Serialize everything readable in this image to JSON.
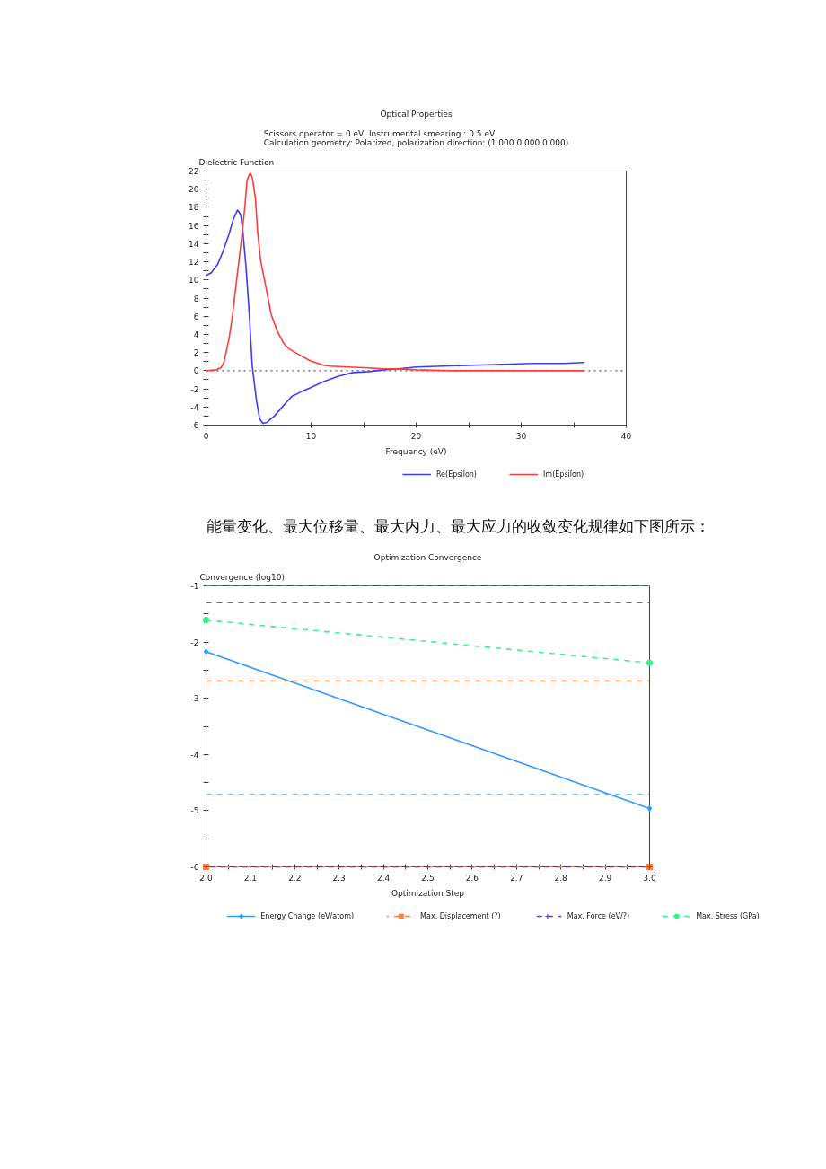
{
  "chart_data": [
    {
      "type": "line",
      "title": "Optical Properties",
      "subtitle": "Scissors operator = 0 eV, Instrumental smearing : 0.5 eV\nCalculation geometry: Polarized, polarization direction: (1.000 0.000 0.000)",
      "xlabel": "Frequency (eV)",
      "ylabel": "Dielectric Function",
      "xlim": [
        0,
        40
      ],
      "ylim": [
        -6,
        22
      ],
      "xticks": [
        0,
        {
          "value": 5,
          "label": null
        },
        10,
        {
          "value": 15,
          "label": null
        },
        20,
        {
          "value": 25,
          "label": null
        },
        30,
        {
          "value": 35,
          "label": null
        },
        40
      ],
      "yticks": [
        -6,
        {
          "value": -5,
          "label": null
        },
        -4,
        {
          "value": -3,
          "label": null
        },
        -2,
        {
          "value": -1,
          "label": null
        },
        0,
        {
          "value": 1,
          "label": null
        },
        2,
        {
          "value": 3,
          "label": null
        },
        4,
        {
          "value": 5,
          "label": null
        },
        6,
        {
          "value": 7,
          "label": null
        },
        8,
        {
          "value": 9,
          "label": null
        },
        10,
        {
          "value": 11,
          "label": null
        },
        12,
        {
          "value": 13,
          "label": null
        },
        14,
        {
          "value": 15,
          "label": null
        },
        16,
        {
          "value": 17,
          "label": null
        },
        18,
        {
          "value": 19,
          "label": null
        },
        20,
        {
          "value": 21,
          "label": null
        },
        22
      ],
      "series": [
        {
          "name": "Re(Epsilon)",
          "color": "#3c3cff",
          "x": [
            0,
            0.5,
            1.1,
            1.6,
            2.2,
            2.6,
            3.0,
            3.3,
            3.5,
            3.8,
            4.1,
            4.4,
            4.8,
            5.1,
            5.4,
            5.8,
            6.5,
            7.4,
            8.2,
            9.1,
            9.9,
            11.2,
            12.6,
            14.0,
            15.5,
            16.9,
            18.3,
            20.0,
            22.6,
            25.4,
            28.3,
            31.1,
            34.0,
            36.0
          ],
          "values": [
            10.5,
            10.8,
            11.7,
            13.1,
            15.1,
            16.7,
            17.7,
            17.2,
            15.4,
            11.5,
            6.5,
            0.5,
            -3.3,
            -5.3,
            -5.8,
            -5.7,
            -5.0,
            -3.8,
            -2.8,
            -2.3,
            -1.9,
            -1.2,
            -0.6,
            -0.2,
            -0.1,
            0.1,
            0.2,
            0.4,
            0.5,
            0.6,
            0.7,
            0.8,
            0.8,
            0.9
          ]
        },
        {
          "name": "Im(Epsilon)",
          "color": "#ff3c3c",
          "x": [
            0,
            1.0,
            1.4,
            1.7,
            1.9,
            2.2,
            2.5,
            2.8,
            3.1,
            3.4,
            3.7,
            3.9,
            4.2,
            4.4,
            4.7,
            4.9,
            5.2,
            5.7,
            6.2,
            6.8,
            7.4,
            7.9,
            8.8,
            9.9,
            11.2,
            11.8,
            13.5,
            15.5,
            16.9,
            18.3,
            20.0,
            23.2,
            27.0,
            36.0
          ],
          "values": [
            0,
            0.1,
            0.3,
            0.9,
            2.0,
            3.6,
            5.9,
            8.9,
            11.8,
            14.8,
            18.1,
            21.0,
            21.8,
            21.3,
            19.0,
            15.4,
            12.1,
            9.2,
            6.2,
            4.3,
            3.0,
            2.4,
            1.8,
            1.1,
            0.6,
            0.5,
            0.4,
            0.3,
            0.2,
            0.2,
            0.1,
            0,
            0,
            0
          ]
        }
      ],
      "ref_lines": [
        {
          "axis": "y",
          "value": 0,
          "color": "#555555",
          "line_style": "dotted"
        }
      ],
      "legend": "bottom",
      "annotations": [
        "能量变化、最大位移量、最大内力、最大应力的收敛变化规律如下图所示："
      ]
    },
    {
      "type": "line",
      "title": "Optimization Convergence",
      "xlabel": "Optimization Step",
      "ylabel": "Convergence (log10)",
      "xlim": [
        2,
        3
      ],
      "ylim": [
        -6,
        -1
      ],
      "xticks": [
        {
          "value": 2,
          "label": "2.0"
        },
        {
          "value": 2.05,
          "label": null
        },
        2.1,
        {
          "value": 2.15,
          "label": null
        },
        2.2,
        {
          "value": 2.25,
          "label": null
        },
        2.3,
        {
          "value": 2.35,
          "label": null
        },
        2.4,
        {
          "value": 2.45,
          "label": null
        },
        2.5,
        {
          "value": 2.55,
          "label": null
        },
        2.6,
        {
          "value": 2.65,
          "label": null
        },
        2.7,
        {
          "value": 2.75,
          "label": null
        },
        2.8,
        {
          "value": 2.85,
          "label": null
        },
        2.9,
        {
          "value": 2.95,
          "label": null
        },
        {
          "value": 3,
          "label": "3.0"
        }
      ],
      "yticks": [
        -6,
        {
          "value": -5.5,
          "label": null
        },
        -5,
        {
          "value": -4.5,
          "label": null
        },
        -4,
        {
          "value": -3.5,
          "label": null
        },
        -3,
        {
          "value": -2.5,
          "label": null
        },
        -2,
        {
          "value": -1.5,
          "label": null
        },
        -1
      ],
      "x": [
        2,
        3
      ],
      "series": [
        {
          "name": "Energy Change (eV/atom)",
          "color": "#3399ff",
          "values": [
            -2.17,
            -4.96
          ],
          "marker": "diamond",
          "line_style": "solid"
        },
        {
          "name": "Max. Displacement (?)",
          "color": "#ff8040",
          "values": [
            -6,
            -6
          ],
          "marker": "square",
          "line_style": "dashed"
        },
        {
          "name": "Max. Force (eV/?)",
          "color": "#6a3fbf",
          "values": [
            -6,
            -6
          ],
          "marker": "cross",
          "line_style": "dashed"
        },
        {
          "name": "Max. Stress (GPa)",
          "color": "#40f090",
          "values": [
            -1.61,
            -2.37
          ],
          "marker": "circle",
          "line_style": "dashed"
        }
      ],
      "ref_lines": [
        {
          "axis": "y",
          "value": -1,
          "color": "#40f090",
          "line_style": "dashed"
        },
        {
          "axis": "y",
          "value": -1.3,
          "color": "#7a4cc8",
          "line_style": "dashed"
        },
        {
          "axis": "y",
          "value": -2.69,
          "color": "#ff7f3f",
          "line_style": "dashed"
        },
        {
          "axis": "y",
          "value": -4.71,
          "color": "#4da6ff",
          "line_style": "dashed"
        }
      ],
      "legend": "bottom"
    }
  ]
}
